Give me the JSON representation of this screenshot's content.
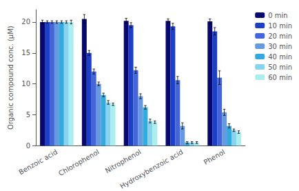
{
  "chart_data": {
    "type": "bar",
    "ylabel": "Organic compound conc. (μM)",
    "categories": [
      "Benzoic acid",
      "Chlorophenol",
      "Nitrophenol",
      "Hydroxybenzoic acid",
      "Phenol"
    ],
    "series": [
      {
        "name": "0 min",
        "color": "#08086e",
        "values": [
          20.0,
          20.5,
          20.2,
          20.2,
          20.1
        ],
        "errors": [
          0.3,
          0.7,
          0.4,
          0.3,
          0.4
        ]
      },
      {
        "name": "10 min",
        "color": "#1c3fc8",
        "values": [
          20.0,
          15.0,
          19.5,
          19.3,
          18.5
        ],
        "errors": [
          0.2,
          0.4,
          0.4,
          0.5,
          0.6
        ]
      },
      {
        "name": "20 min",
        "color": "#4466d8",
        "values": [
          20.0,
          12.0,
          12.2,
          10.6,
          11.0
        ],
        "errors": [
          0.2,
          0.4,
          0.5,
          0.6,
          1.1
        ]
      },
      {
        "name": "30 min",
        "color": "#6699e0",
        "values": [
          20.0,
          10.0,
          8.0,
          3.2,
          5.4
        ],
        "errors": [
          0.2,
          0.3,
          0.4,
          0.5,
          0.5
        ]
      },
      {
        "name": "40 min",
        "color": "#33aadd",
        "values": [
          20.0,
          8.2,
          6.2,
          0.5,
          3.2
        ],
        "errors": [
          0.2,
          0.3,
          0.3,
          0.15,
          0.35
        ]
      },
      {
        "name": "50 min",
        "color": "#88d4ee",
        "values": [
          20.0,
          7.0,
          4.0,
          0.5,
          2.5
        ],
        "errors": [
          0.2,
          0.3,
          0.3,
          0.15,
          0.2
        ]
      },
      {
        "name": "60 min",
        "color": "#aaeef0",
        "values": [
          20.0,
          6.7,
          3.8,
          0.5,
          2.2
        ],
        "errors": [
          0.3,
          0.2,
          0.2,
          0.15,
          0.2
        ]
      }
    ],
    "ylim": [
      0,
      22
    ],
    "yticks": [
      0,
      5,
      10,
      15,
      20
    ],
    "grid": false,
    "legend": "upper right"
  }
}
